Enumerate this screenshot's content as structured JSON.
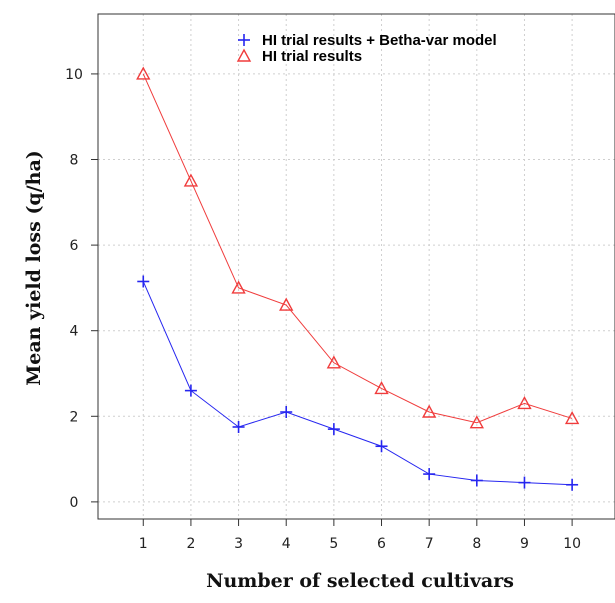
{
  "chart_data": {
    "type": "line",
    "title": "",
    "xlabel": "Number of selected cultivars",
    "ylabel": "Mean yield loss (q/ha)",
    "x": [
      1,
      2,
      3,
      4,
      5,
      6,
      7,
      8,
      9,
      10
    ],
    "xticks": [
      "1",
      "2",
      "3",
      "4",
      "5",
      "6",
      "7",
      "8",
      "9",
      "10"
    ],
    "yticks": [
      "0",
      "2",
      "4",
      "6",
      "8",
      "10"
    ],
    "xlim": [
      0.05,
      10.9
    ],
    "ylim": [
      -0.4,
      11.4
    ],
    "grid": true,
    "legend_position": "top-center",
    "series": [
      {
        "name": "HI trial results + Betha-var model",
        "marker": "plus",
        "color": "#2626f0",
        "values": [
          5.15,
          2.6,
          1.75,
          2.1,
          1.7,
          1.3,
          0.65,
          0.5,
          0.45,
          0.4
        ]
      },
      {
        "name": "HI trial results",
        "marker": "triangle",
        "color": "#f03c3c",
        "values": [
          10.0,
          7.5,
          5.0,
          4.6,
          3.25,
          2.65,
          2.1,
          1.85,
          2.3,
          1.95
        ]
      }
    ]
  }
}
